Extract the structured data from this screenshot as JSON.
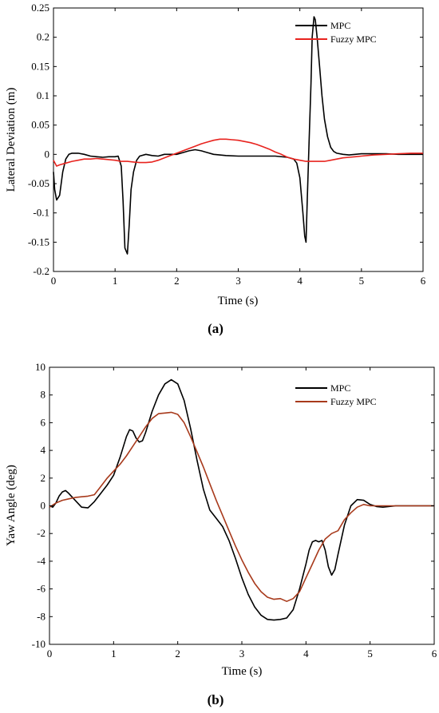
{
  "chart_data": [
    {
      "type": "line",
      "caption": "(a)",
      "xlabel": "Time (s)",
      "ylabel": "Lateral Deviation (m)",
      "xlim": [
        0,
        6
      ],
      "ylim": [
        -0.2,
        0.25
      ],
      "xticks": [
        "0",
        "1",
        "2",
        "3",
        "4",
        "5",
        "6"
      ],
      "yticks": [
        "0.25",
        "0.2",
        "0.15",
        "0.1",
        "0.05",
        "0",
        "-0.05",
        "-0.1",
        "-0.15",
        "-0.2"
      ],
      "legend_position": "top-right",
      "grid": false,
      "series": [
        {
          "name": "MPC",
          "color": "#000000",
          "x": [
            0,
            0.02,
            0.05,
            0.1,
            0.15,
            0.2,
            0.25,
            0.3,
            0.4,
            0.5,
            0.6,
            0.7,
            0.8,
            0.9,
            1.0,
            1.05,
            1.1,
            1.13,
            1.16,
            1.2,
            1.23,
            1.26,
            1.3,
            1.35,
            1.4,
            1.5,
            1.6,
            1.7,
            1.8,
            1.9,
            2.0,
            2.1,
            2.2,
            2.3,
            2.4,
            2.5,
            2.6,
            2.8,
            3.0,
            3.2,
            3.4,
            3.6,
            3.8,
            3.9,
            3.95,
            4.0,
            4.05,
            4.08,
            4.1,
            4.12,
            4.15,
            4.18,
            4.2,
            4.23,
            4.25,
            4.28,
            4.32,
            4.36,
            4.4,
            4.45,
            4.5,
            4.55,
            4.6,
            4.7,
            4.8,
            4.9,
            5.0,
            5.2,
            5.4,
            5.6,
            5.8,
            6.0
          ],
          "values": [
            -0.03,
            -0.06,
            -0.078,
            -0.07,
            -0.03,
            -0.008,
            0.0,
            0.002,
            0.002,
            0.0,
            -0.003,
            -0.004,
            -0.005,
            -0.004,
            -0.004,
            -0.003,
            -0.02,
            -0.08,
            -0.16,
            -0.17,
            -0.12,
            -0.06,
            -0.03,
            -0.01,
            -0.003,
            0.0,
            -0.002,
            -0.003,
            0.0,
            0.0,
            0.0,
            0.003,
            0.006,
            0.008,
            0.006,
            0.003,
            0.0,
            -0.002,
            -0.003,
            -0.003,
            -0.003,
            -0.003,
            -0.005,
            -0.008,
            -0.015,
            -0.04,
            -0.1,
            -0.14,
            -0.15,
            -0.08,
            0.02,
            0.12,
            0.2,
            0.235,
            0.23,
            0.2,
            0.15,
            0.1,
            0.06,
            0.03,
            0.012,
            0.005,
            0.002,
            0.0,
            -0.001,
            0.0,
            0.001,
            0.001,
            0.001,
            0.0,
            0.0,
            0.0
          ]
        },
        {
          "name": "Fuzzy MPC",
          "color": "#e8231e",
          "x": [
            0,
            0.05,
            0.1,
            0.2,
            0.3,
            0.4,
            0.5,
            0.6,
            0.7,
            0.8,
            0.9,
            1.0,
            1.1,
            1.2,
            1.3,
            1.4,
            1.5,
            1.6,
            1.7,
            1.8,
            1.9,
            2.0,
            2.1,
            2.2,
            2.3,
            2.4,
            2.5,
            2.6,
            2.7,
            2.8,
            2.9,
            3.0,
            3.1,
            3.2,
            3.3,
            3.4,
            3.5,
            3.6,
            3.7,
            3.8,
            3.9,
            4.0,
            4.1,
            4.2,
            4.3,
            4.4,
            4.5,
            4.6,
            4.7,
            4.8,
            4.9,
            5.0,
            5.2,
            5.4,
            5.6,
            5.8,
            6.0
          ],
          "values": [
            -0.01,
            -0.02,
            -0.018,
            -0.015,
            -0.012,
            -0.01,
            -0.008,
            -0.008,
            -0.007,
            -0.008,
            -0.009,
            -0.01,
            -0.012,
            -0.012,
            -0.013,
            -0.014,
            -0.014,
            -0.013,
            -0.01,
            -0.006,
            -0.002,
            0.002,
            0.006,
            0.01,
            0.014,
            0.018,
            0.021,
            0.024,
            0.026,
            0.026,
            0.025,
            0.024,
            0.022,
            0.02,
            0.017,
            0.013,
            0.009,
            0.004,
            0.0,
            -0.005,
            -0.008,
            -0.01,
            -0.012,
            -0.012,
            -0.012,
            -0.012,
            -0.01,
            -0.008,
            -0.006,
            -0.005,
            -0.004,
            -0.003,
            -0.001,
            0.0,
            0.001,
            0.002,
            0.002
          ]
        }
      ]
    },
    {
      "type": "line",
      "caption": "(b)",
      "xlabel": "Time (s)",
      "ylabel": "Yaw Angle (deg)",
      "xlim": [
        0,
        6
      ],
      "ylim": [
        -10,
        10
      ],
      "xticks": [
        "0",
        "1",
        "2",
        "3",
        "4",
        "5",
        "6"
      ],
      "yticks": [
        "10",
        "8",
        "6",
        "4",
        "2",
        "0",
        "-2",
        "-4",
        "-6",
        "-8",
        "-10"
      ],
      "legend_position": "top-right",
      "grid": false,
      "series": [
        {
          "name": "MPC",
          "color": "#000000",
          "x": [
            0,
            0.05,
            0.1,
            0.15,
            0.2,
            0.25,
            0.3,
            0.4,
            0.5,
            0.6,
            0.7,
            0.8,
            0.9,
            1.0,
            1.1,
            1.2,
            1.25,
            1.3,
            1.35,
            1.4,
            1.45,
            1.5,
            1.6,
            1.7,
            1.8,
            1.9,
            2.0,
            2.1,
            2.2,
            2.3,
            2.4,
            2.5,
            2.6,
            2.7,
            2.8,
            2.9,
            3.0,
            3.1,
            3.2,
            3.3,
            3.4,
            3.5,
            3.6,
            3.7,
            3.8,
            3.9,
            4.0,
            4.05,
            4.1,
            4.15,
            4.2,
            4.25,
            4.3,
            4.35,
            4.4,
            4.45,
            4.5,
            4.6,
            4.7,
            4.8,
            4.9,
            5.0,
            5.1,
            5.2,
            5.4,
            5.6,
            5.8,
            6.0
          ],
          "values": [
            0,
            -0.1,
            0.2,
            0.7,
            1.0,
            1.1,
            0.9,
            0.4,
            -0.1,
            -0.15,
            0.3,
            0.9,
            1.5,
            2.2,
            3.5,
            5.0,
            5.5,
            5.4,
            4.9,
            4.6,
            4.7,
            5.3,
            6.8,
            8.0,
            8.8,
            9.1,
            8.8,
            7.6,
            5.6,
            3.3,
            1.2,
            -0.3,
            -0.9,
            -1.5,
            -2.5,
            -3.8,
            -5.2,
            -6.4,
            -7.3,
            -7.9,
            -8.2,
            -8.25,
            -8.2,
            -8.1,
            -7.5,
            -6.0,
            -4.2,
            -3.2,
            -2.6,
            -2.5,
            -2.6,
            -2.5,
            -3.2,
            -4.4,
            -5.0,
            -4.6,
            -3.5,
            -1.4,
            0.0,
            0.45,
            0.4,
            0.1,
            -0.05,
            -0.1,
            0,
            0,
            0,
            0
          ]
        },
        {
          "name": "Fuzzy MPC",
          "color": "#a83a1c",
          "x": [
            0,
            0.1,
            0.2,
            0.3,
            0.4,
            0.5,
            0.6,
            0.7,
            0.8,
            0.9,
            1.0,
            1.1,
            1.2,
            1.3,
            1.4,
            1.5,
            1.6,
            1.7,
            1.8,
            1.9,
            2.0,
            2.1,
            2.2,
            2.3,
            2.4,
            2.5,
            2.6,
            2.7,
            2.8,
            2.9,
            3.0,
            3.1,
            3.2,
            3.3,
            3.4,
            3.5,
            3.6,
            3.7,
            3.8,
            3.9,
            4.0,
            4.1,
            4.2,
            4.3,
            4.4,
            4.5,
            4.6,
            4.7,
            4.8,
            4.9,
            5.0,
            5.2,
            5.4,
            5.6,
            5.8,
            6.0
          ],
          "values": [
            -0.1,
            0.2,
            0.4,
            0.5,
            0.6,
            0.65,
            0.7,
            0.8,
            1.4,
            2.0,
            2.5,
            3.0,
            3.6,
            4.3,
            5.0,
            5.7,
            6.3,
            6.65,
            6.7,
            6.75,
            6.6,
            6.0,
            5.0,
            3.9,
            2.8,
            1.6,
            0.4,
            -0.7,
            -1.8,
            -2.9,
            -3.9,
            -4.8,
            -5.6,
            -6.2,
            -6.6,
            -6.75,
            -6.7,
            -6.9,
            -6.7,
            -6.2,
            -5.2,
            -4.2,
            -3.2,
            -2.4,
            -2.0,
            -1.8,
            -1.0,
            -0.5,
            -0.1,
            0.1,
            0.0,
            0.0,
            0.0,
            0.0,
            0.0,
            0.0
          ]
        }
      ]
    }
  ]
}
